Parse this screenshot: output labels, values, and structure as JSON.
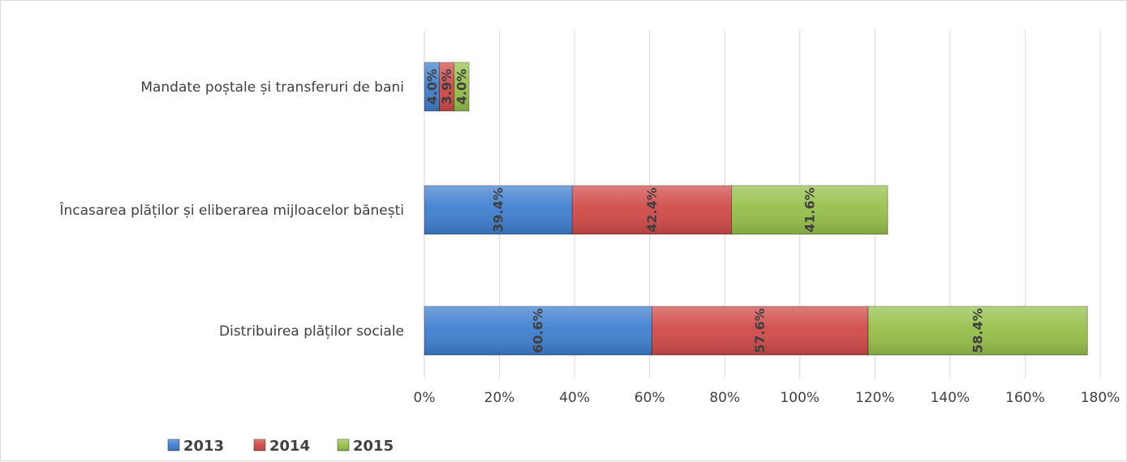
{
  "chart_data": {
    "type": "bar",
    "orientation": "horizontal",
    "stacked": true,
    "categories": [
      "Mandate poștale și transferuri de bani",
      "Încasarea plăților și eliberarea mijloacelor bănești",
      "Distribuirea plăților sociale"
    ],
    "series": [
      {
        "name": "2013",
        "values": [
          4.0,
          39.4,
          60.6
        ],
        "labels": [
          "4.0%",
          "39.4%",
          "60.6%"
        ],
        "color": "#3f7fd0"
      },
      {
        "name": "2014",
        "values": [
          3.9,
          42.4,
          57.6
        ],
        "labels": [
          "3.9%",
          "42.4%",
          "57.6%"
        ],
        "color": "#d04a48"
      },
      {
        "name": "2015",
        "values": [
          4.0,
          41.6,
          58.4
        ],
        "labels": [
          "4.0%",
          "41.6%",
          "58.4%"
        ],
        "color": "#96c04a"
      }
    ],
    "xlim": [
      0,
      180
    ],
    "xticks": [
      "0%",
      "20%",
      "40%",
      "60%",
      "80%",
      "100%",
      "120%",
      "140%",
      "160%",
      "180%"
    ],
    "grid": "vertical",
    "legend_position": "bottom-left",
    "title": "",
    "xlabel": "",
    "ylabel": ""
  }
}
